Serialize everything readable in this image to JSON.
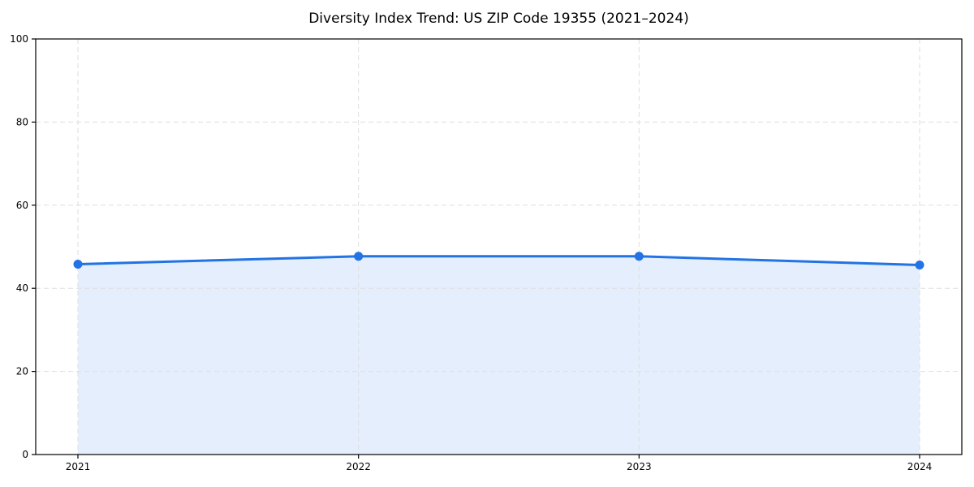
{
  "chart_data": {
    "type": "area",
    "title": "Diversity Index Trend: US ZIP Code 19355 (2021–2024)",
    "x": [
      "2021",
      "2022",
      "2023",
      "2024"
    ],
    "series": [
      {
        "name": "Diversity Index",
        "values": [
          45.8,
          47.7,
          47.7,
          45.6
        ]
      }
    ],
    "xlabel": "",
    "ylabel": "",
    "ylim": [
      0,
      100
    ],
    "yticks": [
      0,
      20,
      40,
      60,
      80,
      100
    ],
    "grid": "dashed",
    "legend_position": "none",
    "colors": {
      "line": "#2273e3",
      "marker": "#2273e3",
      "fill": "rgba(34,115,227,0.12)",
      "grid": "#dedede",
      "spine": "#000000",
      "tick_text": "#000000",
      "background": "#ffffff"
    }
  }
}
